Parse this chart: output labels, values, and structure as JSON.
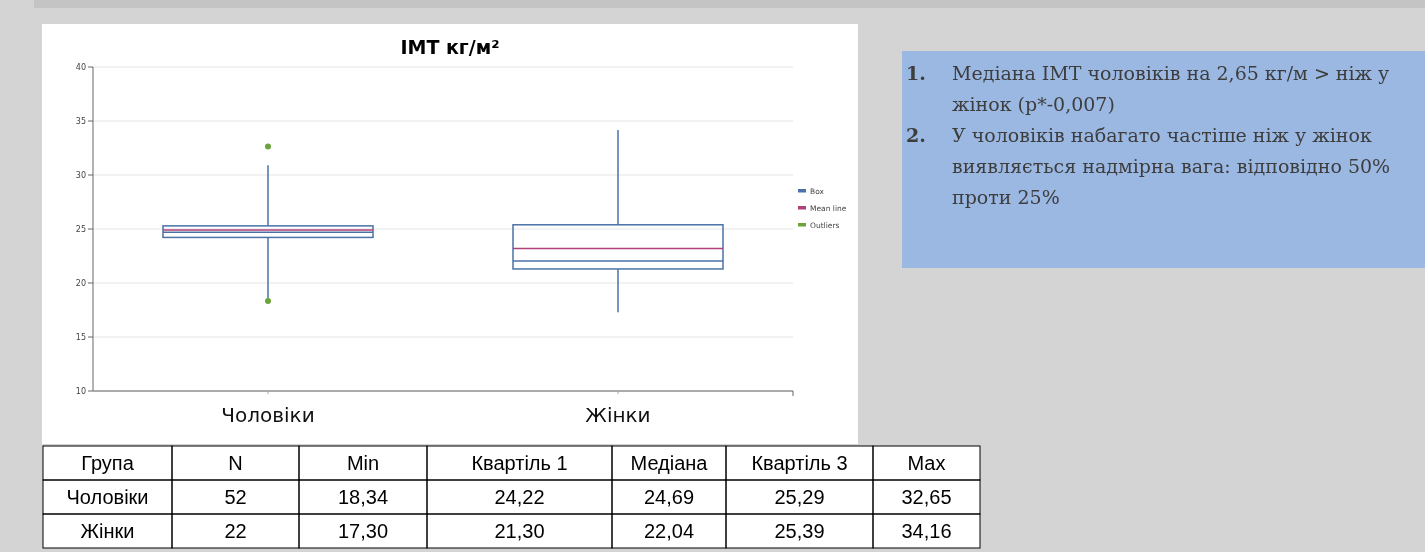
{
  "chart_data": {
    "type": "box",
    "title": "ІМТ кг/м²",
    "categories": [
      "Чоловіки",
      "Жінки"
    ],
    "series": [
      {
        "name": "Box",
        "color": "#4a72a8",
        "boxes": [
          {
            "low": 18.34,
            "q1": 24.22,
            "median": 24.69,
            "q3": 25.29,
            "high": 30.9,
            "mean": 24.9,
            "outliers": [
              32.65,
              18.34
            ]
          },
          {
            "low": 17.3,
            "q1": 21.3,
            "median": 22.04,
            "q3": 25.39,
            "high": 34.16,
            "mean": 23.2
          }
        ]
      },
      {
        "name": "Mean line",
        "color": "#b0407a",
        "values": [
          null,
          null
        ]
      },
      {
        "name": "Outliers",
        "color": "#6aa43a",
        "values": [
          null,
          null
        ]
      }
    ],
    "ylim": [
      10,
      40
    ],
    "yticks": [
      10,
      15,
      20,
      25,
      30,
      35,
      40
    ],
    "grid": "y",
    "legend": "right",
    "annotations": [
      "1. Медіана ІМТ чоловіків на 2,65 кг/м > ніж у жінок (p*-0,007)",
      "2. У чоловіків набагато частіше ніж у жінок виявляється надмірна вага: відповідно 50% проти  25%",
      "Група",
      "N",
      "Min",
      "Квартіль 1",
      "Медіана",
      "Квартіль 3",
      "Max",
      "Чоловіки",
      "52",
      "18,34",
      "24,22",
      "24,69",
      "25,29",
      "32,65",
      "Жінки",
      "22",
      "17,30",
      "21,30",
      "22,04",
      "25,39",
      "34,16"
    ]
  }
}
